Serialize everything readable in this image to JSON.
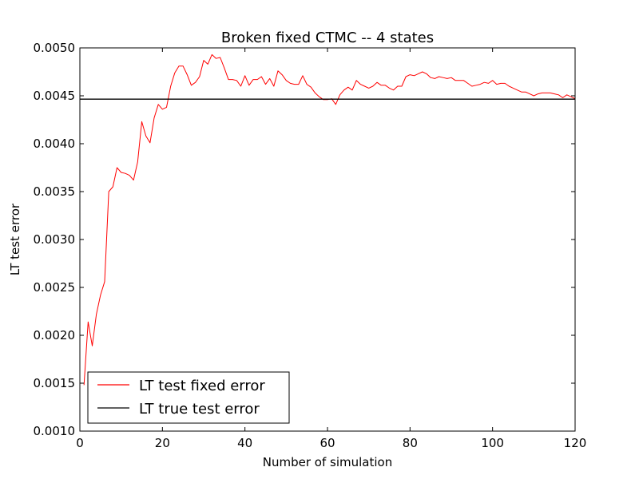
{
  "chart_data": {
    "type": "line",
    "title": "Broken fixed CTMC -- 4 states",
    "xlabel": "Number of simulation",
    "ylabel": "LT test error",
    "xlim": [
      0,
      120
    ],
    "ylim": [
      0.001,
      0.005
    ],
    "xticks": [
      0,
      20,
      40,
      60,
      80,
      100,
      120
    ],
    "xtick_labels": [
      "0",
      "20",
      "40",
      "60",
      "80",
      "100",
      "120"
    ],
    "yticks": [
      0.001,
      0.0015,
      0.002,
      0.0025,
      0.003,
      0.0035,
      0.004,
      0.0045,
      0.005
    ],
    "ytick_labels": [
      "0.0010",
      "0.0015",
      "0.0020",
      "0.0025",
      "0.0030",
      "0.0035",
      "0.0040",
      "0.0045",
      "0.0050"
    ],
    "grid": false,
    "legend_position": "bottom-left",
    "series": [
      {
        "name": "LT test fixed error",
        "color": "#ff0000",
        "x": [
          1,
          2,
          3,
          4,
          5,
          6,
          7,
          8,
          9,
          10,
          11,
          12,
          13,
          14,
          15,
          16,
          17,
          18,
          19,
          20,
          21,
          22,
          23,
          24,
          25,
          26,
          27,
          28,
          29,
          30,
          31,
          32,
          33,
          34,
          35,
          36,
          37,
          38,
          39,
          40,
          41,
          42,
          43,
          44,
          45,
          46,
          47,
          48,
          49,
          50,
          51,
          52,
          53,
          54,
          55,
          56,
          57,
          58,
          59,
          60,
          61,
          62,
          63,
          64,
          65,
          66,
          67,
          68,
          69,
          70,
          71,
          72,
          73,
          74,
          75,
          76,
          77,
          78,
          79,
          80,
          81,
          82,
          83,
          84,
          85,
          86,
          87,
          88,
          89,
          90,
          91,
          92,
          93,
          94,
          95,
          96,
          97,
          98,
          99,
          100,
          101,
          102,
          103,
          104,
          105,
          106,
          107,
          108,
          109,
          110,
          111,
          112,
          113,
          114,
          115,
          116,
          117,
          118,
          119,
          120
        ],
        "values": [
          0.00148,
          0.00214,
          0.00189,
          0.00222,
          0.00242,
          0.00256,
          0.0035,
          0.00355,
          0.00375,
          0.0037,
          0.00369,
          0.00367,
          0.00362,
          0.00381,
          0.00423,
          0.00408,
          0.00401,
          0.00427,
          0.00441,
          0.00436,
          0.00438,
          0.0046,
          0.00474,
          0.00481,
          0.00481,
          0.00472,
          0.00461,
          0.00464,
          0.0047,
          0.00487,
          0.00483,
          0.00493,
          0.00489,
          0.0049,
          0.00479,
          0.00467,
          0.00467,
          0.00466,
          0.0046,
          0.00471,
          0.00461,
          0.00467,
          0.00467,
          0.0047,
          0.00462,
          0.00468,
          0.0046,
          0.00476,
          0.00472,
          0.00466,
          0.00463,
          0.00462,
          0.00462,
          0.00471,
          0.00462,
          0.00459,
          0.00453,
          0.00449,
          0.00446,
          0.00446,
          0.00447,
          0.00441,
          0.00451,
          0.00456,
          0.00459,
          0.00456,
          0.00466,
          0.00462,
          0.0046,
          0.00458,
          0.0046,
          0.00464,
          0.00461,
          0.00461,
          0.00458,
          0.00456,
          0.0046,
          0.0046,
          0.0047,
          0.00472,
          0.00471,
          0.00473,
          0.00475,
          0.00473,
          0.00469,
          0.00468,
          0.0047,
          0.00469,
          0.00468,
          0.00469,
          0.00466,
          0.00466,
          0.00466,
          0.00463,
          0.0046,
          0.00461,
          0.00462,
          0.00464,
          0.00463,
          0.00466,
          0.00462,
          0.00463,
          0.00463,
          0.0046,
          0.00458,
          0.00456,
          0.00454,
          0.00454,
          0.00452,
          0.0045,
          0.00452,
          0.00453,
          0.00453,
          0.00453,
          0.00452,
          0.00451,
          0.00448,
          0.00451,
          0.00449,
          0.00447
        ]
      },
      {
        "name": "LT true test error",
        "color": "#000000",
        "x": [
          0,
          120
        ],
        "values": [
          0.004465,
          0.004465
        ]
      }
    ]
  }
}
